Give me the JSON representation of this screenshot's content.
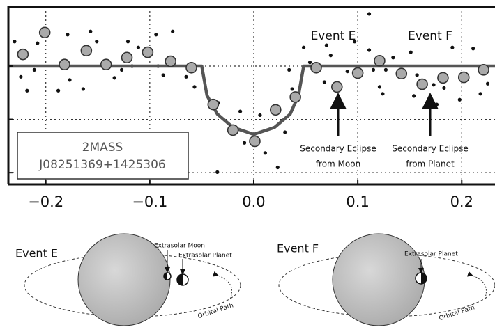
{
  "chart_data": {
    "type": "scatter",
    "xlim": [
      -0.236,
      0.232
    ],
    "ylim": [
      -2.22,
      1.11
    ],
    "xticks": [
      {
        "value": -0.2,
        "label": "−0.2"
      },
      {
        "value": -0.1,
        "label": "−0.1"
      },
      {
        "value": 0,
        "label": "0.0"
      },
      0.1,
      0.2
    ],
    "ygrid": [
      0,
      -1,
      -2
    ],
    "grid": true,
    "series": [
      {
        "mode": "markers",
        "color": "#111111",
        "marker_radius": 2.6,
        "x": [
          -0.23,
          -0.224,
          -0.218,
          -0.211,
          -0.208,
          -0.188,
          -0.179,
          -0.177,
          -0.164,
          -0.157,
          -0.151,
          -0.134,
          -0.127,
          -0.121,
          -0.117,
          -0.111,
          -0.094,
          -0.092,
          -0.087,
          -0.078,
          -0.065,
          -0.057,
          -0.034,
          -0.035,
          -0.013,
          -0.009,
          0.006,
          0.011,
          0.023,
          0.03,
          0.034,
          0.037,
          0.048,
          0.054,
          0.068,
          0.07,
          0.074,
          0.09,
          0.097,
          0.111,
          0.111,
          0.115,
          0.121,
          0.124,
          0.127,
          0.134,
          0.151,
          0.154,
          0.157,
          0.173,
          0.176,
          0.183,
          0.191,
          0.198,
          0.211,
          0.218,
          0.225
        ],
        "values": [
          0.46,
          -0.2,
          -0.46,
          -0.07,
          0.43,
          -0.46,
          0.59,
          -0.26,
          -0.43,
          0.65,
          0.46,
          -0.22,
          -0.07,
          0.46,
          0.0,
          0.35,
          0.59,
          0.0,
          -0.17,
          0.65,
          -0.2,
          -0.39,
          -0.69,
          -1.99,
          -0.85,
          -1.44,
          -0.92,
          -1.63,
          -1.9,
          -1.24,
          -0.07,
          -0.43,
          0.35,
          0.07,
          -0.3,
          0.39,
          0.2,
          -0.1,
          0.46,
          0.98,
          0.3,
          -0.07,
          -0.39,
          -0.52,
          -0.07,
          0.16,
          0.26,
          -0.56,
          -0.17,
          -0.35,
          -0.72,
          -0.41,
          0.35,
          -0.63,
          0.33,
          -0.52,
          -0.33
        ]
      },
      {
        "mode": "line",
        "color": "#555555",
        "line_width": 4.5,
        "x": [
          -0.236,
          -0.05,
          -0.045,
          -0.035,
          -0.02,
          0.0,
          0.02,
          0.035,
          0.043,
          0.048,
          0.232
        ],
        "values": [
          0,
          0,
          -0.55,
          -0.9,
          -1.15,
          -1.28,
          -1.15,
          -0.9,
          -0.55,
          0,
          0
        ]
      },
      {
        "mode": "markers",
        "color": "#aaaaaa",
        "edge_color": "#333333",
        "marker_radius": 7.5,
        "x": [
          -0.222,
          -0.201,
          -0.182,
          -0.161,
          -0.142,
          -0.122,
          -0.102,
          -0.08,
          -0.06,
          -0.039,
          -0.02,
          0.001,
          0.021,
          0.04,
          0.06,
          0.08,
          0.1,
          0.121,
          0.142,
          0.162,
          0.182,
          0.202,
          0.221
        ],
        "values": [
          0.22,
          0.63,
          0.03,
          0.29,
          0.03,
          0.16,
          0.26,
          0.09,
          -0.03,
          -0.72,
          -1.2,
          -1.41,
          -0.82,
          -0.58,
          -0.03,
          -0.39,
          -0.13,
          0.1,
          -0.14,
          -0.34,
          -0.22,
          -0.21,
          -0.07
        ]
      }
    ],
    "label_box": [
      "2MASS",
      "J08251369+1425306"
    ],
    "events": [
      {
        "name": "Event E",
        "note": [
          "Secondary Eclipse",
          "from Moon"
        ]
      },
      {
        "name": "Event F",
        "note": [
          "Secondary Eclipse",
          "from Planet"
        ]
      }
    ]
  },
  "diagram": {
    "panels": [
      {
        "title": "Event E",
        "labels": [
          "Extrasolar Moon",
          "Extrasolar Planet",
          "Orbital Path"
        ]
      },
      {
        "title": "Event F",
        "labels": [
          "Extrasolar Planet",
          "Orbital Path"
        ]
      }
    ]
  }
}
